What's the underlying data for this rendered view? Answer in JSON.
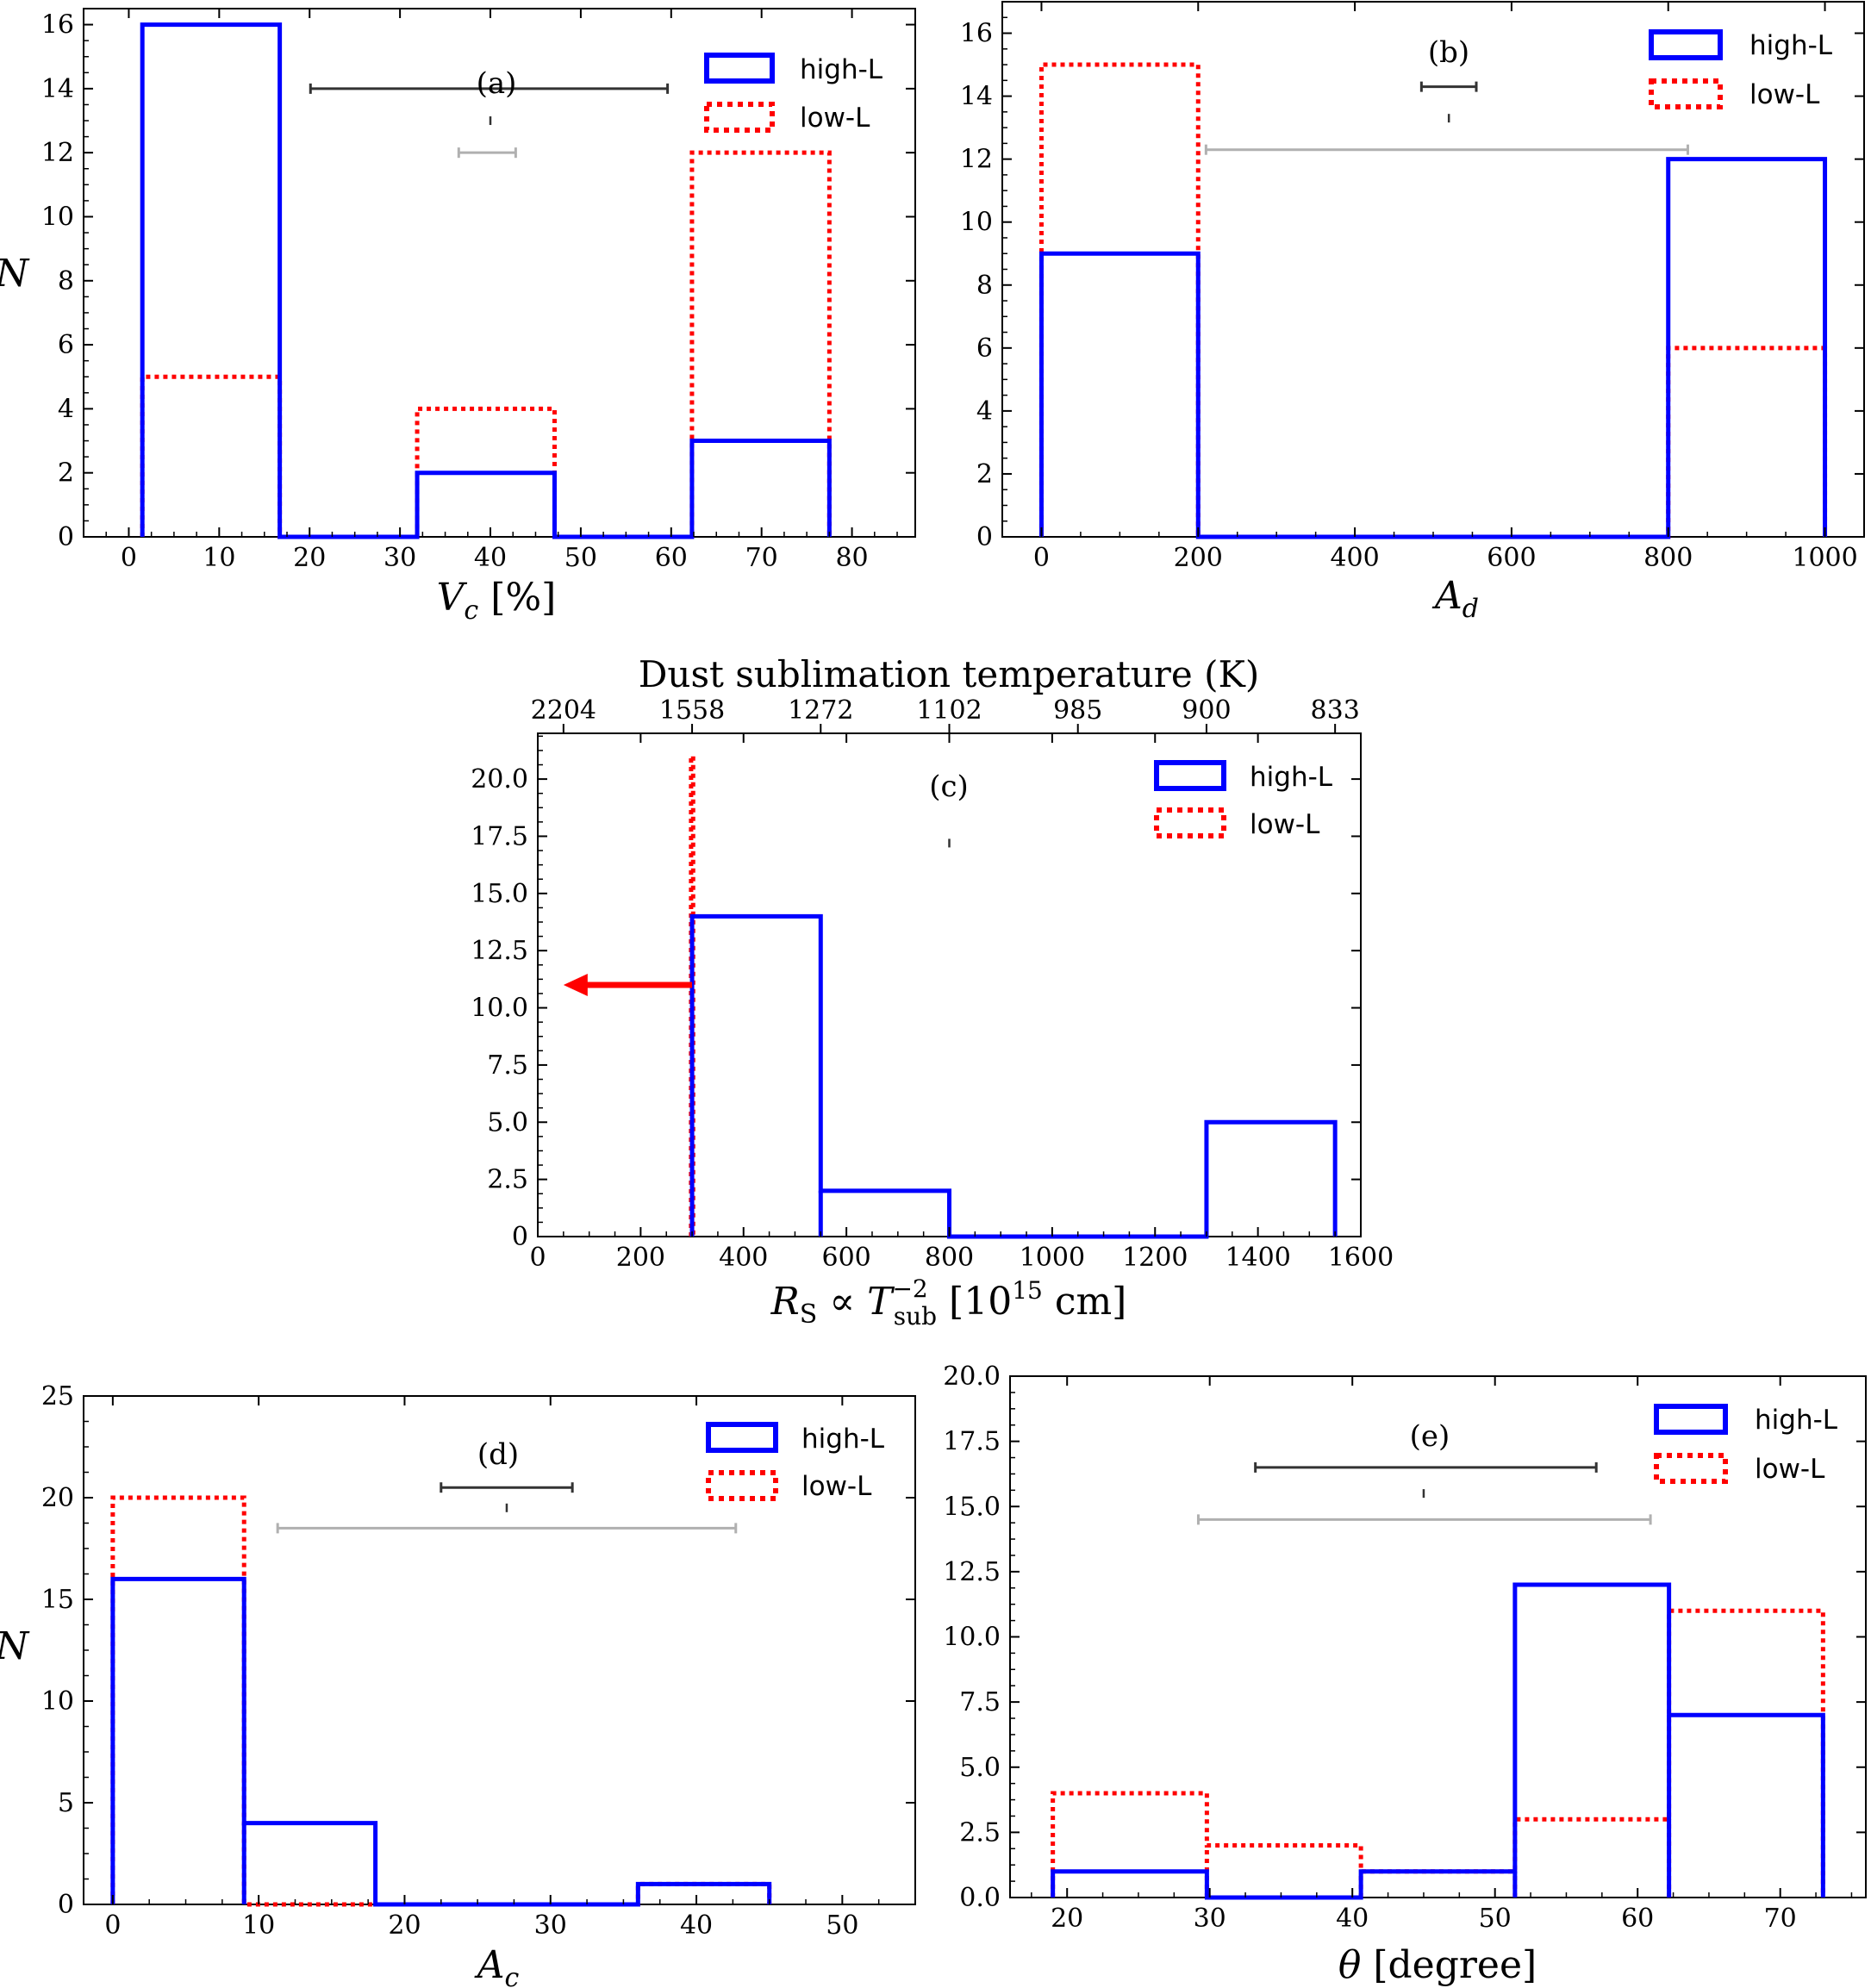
{
  "chart_data": [
    {
      "id": "a",
      "type": "histogram",
      "panel_label": "(a)",
      "xlabel": "Vc [%]",
      "ylabel": "N",
      "xlim": [
        -5,
        87
      ],
      "ylim": [
        0,
        16.5
      ],
      "xticks": [
        0,
        10,
        20,
        30,
        40,
        50,
        60,
        70,
        80
      ],
      "yticks": [
        0,
        2,
        4,
        6,
        8,
        10,
        12,
        14,
        16
      ],
      "series": [
        {
          "name": "high-L",
          "color": "#0000ff",
          "style": "solid",
          "bins": [
            [
              1.5,
              16.7,
              16
            ],
            [
              16.7,
              31.9,
              0
            ],
            [
              31.9,
              47.1,
              2
            ],
            [
              47.1,
              62.3,
              0
            ],
            [
              62.3,
              77.5,
              3
            ]
          ]
        },
        {
          "name": "low-L",
          "color": "#ff0000",
          "style": "dotted",
          "bins": [
            [
              1.5,
              16.7,
              5
            ],
            [
              16.7,
              31.9,
              0
            ],
            [
              31.9,
              47.1,
              4
            ],
            [
              47.1,
              62.3,
              0
            ],
            [
              62.3,
              77.5,
              12
            ]
          ]
        }
      ],
      "errorbars": [
        {
          "y": 14,
          "x1": 20.1,
          "x2": 59.6,
          "color": "#333333"
        },
        {
          "y": 12,
          "x1": 36.5,
          "x2": 42.8,
          "color": "#b0b0b0"
        },
        {
          "y": 13,
          "x1": 40,
          "x2": 40,
          "color": "#333333"
        }
      ],
      "legend": [
        "high-L",
        "low-L"
      ]
    },
    {
      "id": "b",
      "type": "histogram",
      "panel_label": "(b)",
      "xlabel": "Ad",
      "ylabel": "",
      "xlim": [
        -50,
        1050
      ],
      "ylim": [
        0,
        17
      ],
      "xticks": [
        0,
        200,
        400,
        600,
        800,
        1000
      ],
      "yticks": [
        0,
        2,
        4,
        6,
        8,
        10,
        12,
        14,
        16
      ],
      "series": [
        {
          "name": "high-L",
          "color": "#0000ff",
          "style": "solid",
          "bins": [
            [
              0,
              200,
              9
            ],
            [
              200,
              400,
              0
            ],
            [
              400,
              600,
              0
            ],
            [
              600,
              800,
              0
            ],
            [
              800,
              1000,
              12
            ]
          ]
        },
        {
          "name": "low-L",
          "color": "#ff0000",
          "style": "dotted",
          "bins": [
            [
              0,
              200,
              15
            ],
            [
              200,
              400,
              0
            ],
            [
              400,
              600,
              0
            ],
            [
              600,
              800,
              0
            ],
            [
              800,
              1000,
              6
            ]
          ]
        }
      ],
      "errorbars": [
        {
          "y": 14.3,
          "x1": 485,
          "x2": 555,
          "color": "#333333"
        },
        {
          "y": 12.3,
          "x1": 210,
          "x2": 825,
          "color": "#b0b0b0"
        },
        {
          "y": 13.3,
          "x1": 520,
          "x2": 520,
          "color": "#333333"
        }
      ],
      "legend": [
        "high-L",
        "low-L"
      ]
    },
    {
      "id": "c",
      "type": "histogram",
      "panel_label": "(c)",
      "title": "Dust sublimation temperature (K)",
      "xlabel": "RS ∝ Tsub−2 [1015 cm]",
      "ylabel": "",
      "xlim": [
        0,
        1600
      ],
      "ylim": [
        0,
        22
      ],
      "xticks": [
        0,
        200,
        400,
        600,
        800,
        1000,
        1200,
        1400,
        1600
      ],
      "yticks": [
        0,
        2.5,
        5.0,
        7.5,
        10.0,
        12.5,
        15.0,
        17.5,
        20.0
      ],
      "ytick_labels": [
        "0",
        "2.5",
        "5.0",
        "7.5",
        "10.0",
        "12.5",
        "15.0",
        "17.5",
        "20.0"
      ],
      "top_ticks_x": [
        50,
        300,
        550,
        800,
        1050,
        1300,
        1550
      ],
      "top_tick_labels": [
        "2204",
        "1558",
        "1272",
        "1102",
        "985",
        "900",
        "833"
      ],
      "series": [
        {
          "name": "high-L",
          "color": "#0000ff",
          "style": "solid",
          "bins": [
            [
              300,
              550,
              14
            ],
            [
              550,
              800,
              2
            ],
            [
              800,
              1050,
              0
            ],
            [
              1050,
              1300,
              0
            ],
            [
              1300,
              1550,
              5
            ]
          ]
        },
        {
          "name": "low-L",
          "color": "#ff0000",
          "style": "dotted",
          "bins": [
            [
              298,
              302,
              21
            ]
          ]
        }
      ],
      "arrow": {
        "from_x": 300,
        "to_x": 50,
        "y": 11,
        "color": "#ff0000"
      },
      "errorbars": [
        {
          "y": 17.2,
          "x1": 800,
          "x2": 800,
          "color": "#333333"
        }
      ],
      "legend": [
        "high-L",
        "low-L"
      ]
    },
    {
      "id": "d",
      "type": "histogram",
      "panel_label": "(d)",
      "xlabel": "Ac",
      "ylabel": "N",
      "xlim": [
        -2,
        55
      ],
      "ylim": [
        0,
        25
      ],
      "xticks": [
        0,
        10,
        20,
        30,
        40,
        50
      ],
      "yticks": [
        0,
        5,
        10,
        15,
        20,
        25
      ],
      "series": [
        {
          "name": "high-L",
          "color": "#0000ff",
          "style": "solid",
          "bins": [
            [
              0,
              9,
              16
            ],
            [
              9,
              18,
              4
            ],
            [
              18,
              27,
              0
            ],
            [
              27,
              36,
              0
            ],
            [
              36,
              45,
              1
            ]
          ]
        },
        {
          "name": "low-L",
          "color": "#ff0000",
          "style": "dotted",
          "bins": [
            [
              0,
              9,
              20
            ],
            [
              9,
              18,
              0
            ],
            [
              18,
              27,
              0
            ],
            [
              27,
              36,
              0
            ],
            [
              36,
              45,
              1
            ]
          ]
        }
      ],
      "errorbars": [
        {
          "y": 20.5,
          "x1": 22.5,
          "x2": 31.5,
          "color": "#333333"
        },
        {
          "y": 18.5,
          "x1": 11.3,
          "x2": 42.7,
          "color": "#b0b0b0"
        },
        {
          "y": 19.5,
          "x1": 27,
          "x2": 27,
          "color": "#333333"
        }
      ],
      "legend": [
        "high-L",
        "low-L"
      ]
    },
    {
      "id": "e",
      "type": "histogram",
      "panel_label": "(e)",
      "xlabel": "θ [degree]",
      "ylabel": "",
      "xlim": [
        16,
        76
      ],
      "ylim": [
        0,
        20
      ],
      "xticks": [
        20,
        30,
        40,
        50,
        60,
        70
      ],
      "yticks": [
        0,
        2.5,
        5.0,
        7.5,
        10.0,
        12.5,
        15.0,
        17.5,
        20.0
      ],
      "ytick_labels": [
        "0.0",
        "2.5",
        "5.0",
        "7.5",
        "10.0",
        "12.5",
        "15.0",
        "17.5",
        "20.0"
      ],
      "series": [
        {
          "name": "high-L",
          "color": "#0000ff",
          "style": "solid",
          "bins": [
            [
              19,
              29.8,
              1
            ],
            [
              29.8,
              40.6,
              0
            ],
            [
              40.6,
              51.4,
              1
            ],
            [
              51.4,
              62.2,
              12
            ],
            [
              62.2,
              73,
              7
            ]
          ]
        },
        {
          "name": "low-L",
          "color": "#ff0000",
          "style": "dotted",
          "bins": [
            [
              19,
              29.8,
              4
            ],
            [
              29.8,
              40.6,
              2
            ],
            [
              40.6,
              51.4,
              1
            ],
            [
              51.4,
              62.2,
              3
            ],
            [
              62.2,
              73,
              11
            ]
          ]
        }
      ],
      "errorbars": [
        {
          "y": 16.5,
          "x1": 33.2,
          "x2": 57.1,
          "color": "#333333"
        },
        {
          "y": 14.5,
          "x1": 29.2,
          "x2": 60.9,
          "color": "#b0b0b0"
        },
        {
          "y": 15.5,
          "x1": 45,
          "x2": 45,
          "color": "#333333"
        }
      ],
      "legend": [
        "high-L",
        "low-L"
      ]
    }
  ]
}
